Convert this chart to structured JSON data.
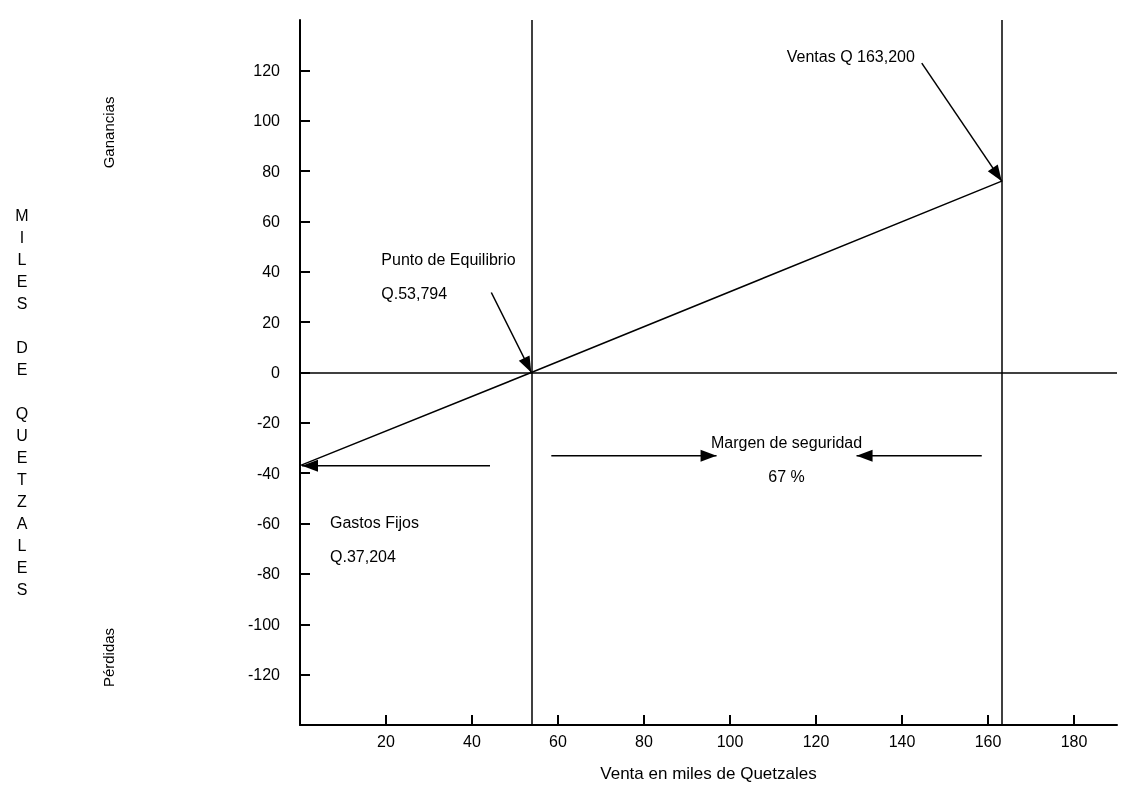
{
  "chart_data": {
    "type": "line",
    "xlabel": "Venta en miles de Quetzales",
    "ylabel": "MILES DE QUETZALES",
    "x": [
      0,
      53.794,
      163.2
    ],
    "values": [
      -37,
      0,
      76
    ],
    "color": "#000000",
    "marker": "none",
    "line_style": "solid",
    "xlim": [
      0,
      190
    ],
    "xticks": [
      20,
      40,
      60,
      80,
      100,
      120,
      140,
      160,
      180
    ],
    "ylim": [
      -140,
      140
    ],
    "yticks": [
      -120,
      -100,
      -80,
      -60,
      -40,
      -20,
      0,
      20,
      40,
      60,
      80,
      100,
      120
    ],
    "grid": false,
    "ref_lines": [
      {
        "axis": "y",
        "value": 0,
        "color": "#000000"
      },
      {
        "axis": "x",
        "value": 53.794,
        "color": "#000000"
      },
      {
        "axis": "x",
        "value": 163.2,
        "color": "#000000"
      }
    ],
    "annotations": [
      {
        "text": "Ventas Q 163,200",
        "x": 163.2,
        "y": 76
      },
      {
        "text": "Punto de Equilibrio\nQ.53,794",
        "x": 53.794,
        "y": 0
      },
      "Gastos Fijos\nQ.37,204",
      "Margen de seguridad\n67 %",
      "Ganancias",
      "Pérdidas"
    ]
  }
}
